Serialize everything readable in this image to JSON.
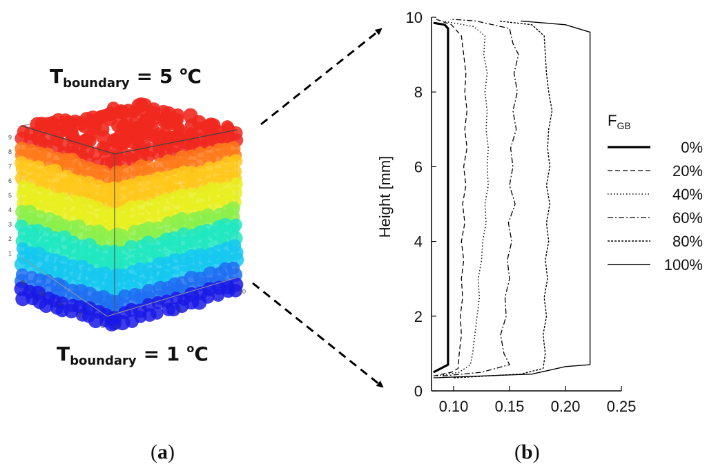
{
  "panel_a": {
    "label": "a",
    "top_boundary": {
      "main": "T",
      "sub": "boundary",
      "eq": "= 5",
      "unit_sup": "o",
      "unit": "C"
    },
    "bottom_boundary": {
      "main": "T",
      "sub": "boundary",
      "eq": "= 1",
      "unit_sup": "o",
      "unit": "C"
    },
    "z_ticks": [
      "1",
      "2",
      "3",
      "4",
      "5",
      "6",
      "7",
      "8",
      "9"
    ],
    "y_ticks": [
      "0",
      "2",
      "4",
      "6",
      "8"
    ],
    "x_ticks": [
      "0",
      "5",
      "10"
    ],
    "colormap": [
      "#1a1ae6",
      "#1f6ef2",
      "#14c8f0",
      "#20e8c0",
      "#8cf04a",
      "#e8f020",
      "#ffc81a",
      "#ff7a1a",
      "#f0281e"
    ]
  },
  "panel_b": {
    "label": "b"
  },
  "chart_data": {
    "type": "line",
    "title": "",
    "ylabel": "Height [mm]",
    "xlabel": "",
    "xlim": [
      0.08,
      0.25
    ],
    "ylim": [
      0,
      10
    ],
    "x_ticks": [
      "0.10",
      "0.15",
      "0.20",
      "0.25"
    ],
    "y_ticks": [
      "0",
      "2",
      "4",
      "6",
      "8",
      "10"
    ],
    "grid": false,
    "legend_title": {
      "main": "F",
      "sub": "GB"
    },
    "legend_position": "right",
    "series": [
      {
        "name": "0%",
        "dash": "solid-bold",
        "points": [
          [
            0.082,
            0.5
          ],
          [
            0.095,
            0.7
          ],
          [
            0.095,
            9.7
          ],
          [
            0.092,
            9.8
          ],
          [
            0.082,
            9.85
          ]
        ]
      },
      {
        "name": "20%",
        "dash": "dashed",
        "points": [
          [
            0.082,
            0.4
          ],
          [
            0.098,
            0.5
          ],
          [
            0.104,
            0.6
          ],
          [
            0.105,
            1.0
          ],
          [
            0.107,
            1.5
          ],
          [
            0.106,
            2.0
          ],
          [
            0.108,
            2.5
          ],
          [
            0.107,
            3.0
          ],
          [
            0.109,
            3.5
          ],
          [
            0.107,
            4.0
          ],
          [
            0.11,
            4.5
          ],
          [
            0.108,
            5.0
          ],
          [
            0.111,
            5.5
          ],
          [
            0.109,
            6.0
          ],
          [
            0.112,
            6.5
          ],
          [
            0.11,
            7.0
          ],
          [
            0.112,
            7.5
          ],
          [
            0.11,
            8.0
          ],
          [
            0.111,
            8.5
          ],
          [
            0.109,
            9.0
          ],
          [
            0.107,
            9.5
          ],
          [
            0.098,
            9.8
          ],
          [
            0.084,
            9.95
          ]
        ]
      },
      {
        "name": "40%",
        "dash": "dotted",
        "points": [
          [
            0.085,
            0.4
          ],
          [
            0.105,
            0.5
          ],
          [
            0.115,
            0.7
          ],
          [
            0.117,
            1.0
          ],
          [
            0.119,
            1.5
          ],
          [
            0.121,
            2.0
          ],
          [
            0.123,
            2.5
          ],
          [
            0.122,
            3.0
          ],
          [
            0.125,
            3.5
          ],
          [
            0.126,
            4.0
          ],
          [
            0.129,
            4.5
          ],
          [
            0.128,
            5.0
          ],
          [
            0.131,
            5.5
          ],
          [
            0.13,
            6.0
          ],
          [
            0.131,
            6.5
          ],
          [
            0.129,
            7.0
          ],
          [
            0.13,
            7.5
          ],
          [
            0.128,
            8.0
          ],
          [
            0.13,
            8.5
          ],
          [
            0.127,
            9.0
          ],
          [
            0.128,
            9.5
          ],
          [
            0.118,
            9.75
          ],
          [
            0.09,
            9.9
          ]
        ]
      },
      {
        "name": "60%",
        "dash": "dash-dot",
        "points": [
          [
            0.09,
            0.4
          ],
          [
            0.125,
            0.5
          ],
          [
            0.15,
            0.7
          ],
          [
            0.145,
            1.0
          ],
          [
            0.142,
            1.5
          ],
          [
            0.147,
            2.0
          ],
          [
            0.146,
            2.5
          ],
          [
            0.15,
            3.0
          ],
          [
            0.148,
            3.5
          ],
          [
            0.152,
            4.0
          ],
          [
            0.149,
            4.5
          ],
          [
            0.155,
            5.0
          ],
          [
            0.15,
            5.5
          ],
          [
            0.153,
            6.0
          ],
          [
            0.151,
            6.5
          ],
          [
            0.156,
            7.0
          ],
          [
            0.153,
            7.5
          ],
          [
            0.157,
            8.0
          ],
          [
            0.154,
            8.5
          ],
          [
            0.158,
            9.0
          ],
          [
            0.153,
            9.3
          ],
          [
            0.15,
            9.7
          ],
          [
            0.12,
            9.9
          ],
          [
            0.097,
            9.95
          ]
        ]
      },
      {
        "name": "80%",
        "dash": "short-dash",
        "points": [
          [
            0.1,
            0.35
          ],
          [
            0.16,
            0.45
          ],
          [
            0.18,
            0.6
          ],
          [
            0.182,
            1.0
          ],
          [
            0.18,
            1.5
          ],
          [
            0.183,
            2.0
          ],
          [
            0.181,
            2.5
          ],
          [
            0.184,
            3.0
          ],
          [
            0.182,
            3.5
          ],
          [
            0.185,
            4.0
          ],
          [
            0.183,
            4.5
          ],
          [
            0.186,
            5.0
          ],
          [
            0.183,
            5.5
          ],
          [
            0.186,
            6.0
          ],
          [
            0.184,
            6.5
          ],
          [
            0.185,
            7.0
          ],
          [
            0.188,
            7.5
          ],
          [
            0.185,
            8.0
          ],
          [
            0.183,
            8.5
          ],
          [
            0.182,
            9.0
          ],
          [
            0.181,
            9.5
          ],
          [
            0.17,
            9.8
          ],
          [
            0.14,
            9.9
          ]
        ]
      },
      {
        "name": "100%",
        "dash": "solid-thin",
        "points": [
          [
            0.082,
            0.35
          ],
          [
            0.17,
            0.45
          ],
          [
            0.2,
            0.65
          ],
          [
            0.222,
            0.7
          ],
          [
            0.222,
            9.6
          ],
          [
            0.2,
            9.8
          ],
          [
            0.16,
            9.9
          ]
        ]
      }
    ]
  }
}
